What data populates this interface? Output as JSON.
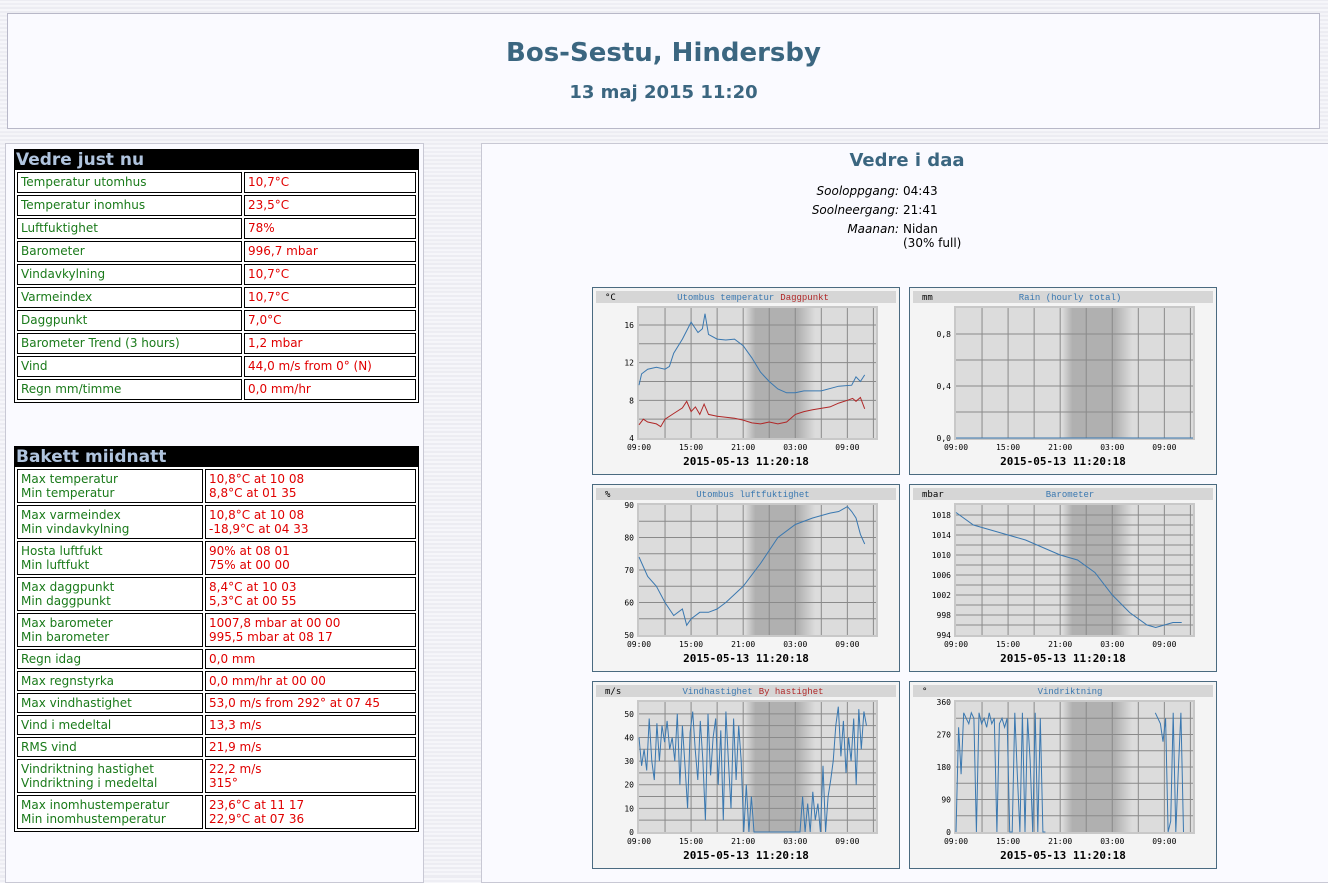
{
  "header": {
    "title": "Bos-Sestu, Hindersby",
    "datetime": "13 maj 2015 11:20"
  },
  "current": {
    "title": "Vedre just nu",
    "rows": [
      {
        "label": "Temperatur utomhus",
        "value": "10,7°C"
      },
      {
        "label": "Temperatur inomhus",
        "value": "23,5°C"
      },
      {
        "label": "Luftfuktighet",
        "value": "78%"
      },
      {
        "label": "Barometer",
        "value": "996,7 mbar"
      },
      {
        "label": "Vindavkylning",
        "value": "10,7°C"
      },
      {
        "label": "Varmeindex",
        "value": "10,7°C"
      },
      {
        "label": "Daggpunkt",
        "value": "7,0°C"
      },
      {
        "label": "Barometer Trend (3 hours)",
        "value": "1,2 mbar"
      },
      {
        "label": "Vind",
        "value": "44,0 m/s from 0° (N)"
      },
      {
        "label": "Regn mm/timme",
        "value": "0,0 mm/hr"
      }
    ]
  },
  "since_midnight": {
    "title": "Bakett miidnatt",
    "rows": [
      {
        "label": "Max temperatur",
        "label2": "Min temperatur",
        "value": "10,8°C at 10 08",
        "value2": "8,8°C at 01 35"
      },
      {
        "label": "Max varmeindex",
        "label2": "Min vindavkylning",
        "value": "10,8°C at 10 08",
        "value2": "-18,9°C at 04 33"
      },
      {
        "label": "Hosta luftfukt",
        "label2": "Min luftfukt",
        "value": "90% at 08 01",
        "value2": "75% at 00 00"
      },
      {
        "label": "Max daggpunkt",
        "label2": "Min daggpunkt",
        "value": "8,4°C at 10 03",
        "value2": "5,3°C at 00 55"
      },
      {
        "label": "Max barometer",
        "label2": "Min barometer",
        "value": "1007,8 mbar at 00 00",
        "value2": "995,5 mbar at 08 17"
      },
      {
        "label": "Regn idag",
        "value": "0,0 mm"
      },
      {
        "label": "Max regnstyrka",
        "value": "0,0 mm/hr at 00 00"
      },
      {
        "label": "Max vindhastighet",
        "value": "53,0 m/s from 292° at 07 45"
      },
      {
        "label": "Vind i medeltal",
        "value": "13,3 m/s"
      },
      {
        "label": "RMS vind",
        "value": "21,9 m/s"
      },
      {
        "label": "Vindriktning hastighet",
        "label2": "Vindriktning i medeltal",
        "value": "22,2 m/s",
        "value2": "315°"
      },
      {
        "label": "Max inomhustemperatur",
        "label2": "Min inomhustemperatur",
        "value": "23,6°C at 11 17",
        "value2": "22,9°C at 07 36"
      }
    ]
  },
  "today": {
    "title": "Vedre i daa",
    "sunrise_label": "Sooloppgang:",
    "sunrise": "04:43",
    "sunset_label": "Soolneergang:",
    "sunset": "21:41",
    "moon_label": "Maanan:",
    "moon": "Nidan",
    "moon_full": "(30% full)"
  },
  "chart_data": [
    {
      "type": "line",
      "unit": "°C",
      "title": [
        "Utombus temperatur",
        "Daggpunkt"
      ],
      "colors": [
        "#3a78b0",
        "#b02828"
      ],
      "ylim": [
        4,
        17.8
      ],
      "yticks": [
        4,
        8,
        12,
        16
      ],
      "ytick_labels": [
        "4",
        "8",
        "12",
        "16"
      ],
      "xtick_labels": [
        "09:00",
        "15:00",
        "21:00",
        "03:00",
        "09:00"
      ],
      "footer": "2015-05-13 11:20:18",
      "series": [
        {
          "name": "Utombus temperatur",
          "x": [
            0,
            0.3,
            1,
            2,
            3,
            3.5,
            4,
            5,
            6,
            6.8,
            7.3,
            7.6,
            8,
            9,
            10,
            11,
            12,
            13,
            14,
            15,
            16,
            17,
            18,
            19,
            21,
            23,
            24.5,
            25,
            25.5,
            26
          ],
          "y": [
            9.6,
            10.8,
            11.3,
            11.5,
            11.3,
            11.6,
            13,
            14.5,
            16.3,
            15.2,
            15.6,
            17.2,
            15,
            14.5,
            14.4,
            14.5,
            13.8,
            12.5,
            11,
            10,
            9.2,
            8.8,
            8.8,
            9,
            9,
            9.5,
            9.6,
            10.5,
            10,
            10.7
          ]
        },
        {
          "name": "Daggpunkt",
          "x": [
            0,
            0.5,
            1,
            2,
            2.5,
            3,
            4,
            5,
            5.5,
            6,
            6.5,
            7,
            7.5,
            8,
            9,
            10,
            11,
            12,
            13,
            14,
            15,
            16,
            17,
            18,
            19,
            20,
            22,
            23,
            24,
            24.6,
            25,
            25.5,
            26
          ],
          "y": [
            5.4,
            6,
            5.7,
            5.5,
            5.2,
            6,
            6.6,
            7.2,
            7.9,
            6.8,
            7.3,
            6.5,
            7.6,
            6.5,
            6.3,
            6.2,
            6.1,
            5.9,
            5.6,
            5.5,
            5.7,
            5.5,
            5.7,
            6.5,
            6.8,
            7,
            7.3,
            7.7,
            8,
            8.2,
            7.9,
            8.3,
            7.1
          ]
        }
      ]
    },
    {
      "type": "line",
      "unit": "mm",
      "title": [
        "Rain (hourly total)"
      ],
      "colors": [
        "#3a78b0"
      ],
      "ylim": [
        0,
        1
      ],
      "yticks": [
        0,
        0.4,
        0.8
      ],
      "ytick_labels": [
        "0,0",
        "0,4",
        "0,8"
      ],
      "xtick_labels": [
        "09:00",
        "15:00",
        "21:00",
        "03:00",
        "09:00"
      ],
      "footer": "2015-05-13 11:20:18",
      "series": [
        {
          "name": "Rain (hourly total)",
          "x": [
            0,
            27.3
          ],
          "y": [
            0,
            0
          ]
        }
      ]
    },
    {
      "type": "line",
      "unit": "%",
      "title": [
        "Utombus luftfuktighet"
      ],
      "colors": [
        "#3a78b0"
      ],
      "ylim": [
        50,
        90
      ],
      "yticks": [
        50,
        60,
        70,
        80,
        90
      ],
      "ytick_labels": [
        "50",
        "60",
        "70",
        "80",
        "90"
      ],
      "xtick_labels": [
        "09:00",
        "15:00",
        "21:00",
        "03:00",
        "09:00"
      ],
      "footer": "2015-05-13 11:20:18",
      "series": [
        {
          "name": "Utombus luftfuktighet",
          "x": [
            0,
            1,
            2,
            3,
            4,
            5,
            5.5,
            6,
            7,
            8,
            9,
            10,
            12,
            14,
            16,
            18,
            20,
            22,
            23,
            24,
            24.5,
            25,
            25.5,
            26
          ],
          "y": [
            74,
            68,
            65,
            60,
            56,
            58,
            53,
            55,
            57,
            57,
            58,
            60,
            65,
            72,
            80,
            84,
            86,
            87.5,
            88,
            89.5,
            88,
            86,
            81,
            78
          ]
        }
      ]
    },
    {
      "type": "line",
      "unit": "mbar",
      "title": [
        "Barometer"
      ],
      "colors": [
        "#3a78b0"
      ],
      "ylim": [
        994,
        1020
      ],
      "yticks": [
        994,
        998,
        1002,
        1006,
        1010,
        1014,
        1018
      ],
      "ytick_labels": [
        "994",
        "998",
        "1002",
        "1006",
        "1010",
        "1014",
        "1018"
      ],
      "xtick_labels": [
        "09:00",
        "15:00",
        "21:00",
        "03:00",
        "09:00"
      ],
      "footer": "2015-05-13 11:20:18",
      "series": [
        {
          "name": "Barometer",
          "x": [
            0,
            2,
            4,
            6,
            8,
            10,
            12,
            14,
            16,
            18,
            20,
            22,
            23,
            24,
            25,
            26
          ],
          "y": [
            1018.5,
            1016,
            1015,
            1014,
            1013,
            1011.5,
            1010,
            1009,
            1006.5,
            1002,
            998.5,
            996,
            995.5,
            996,
            996.5,
            996.5
          ]
        }
      ]
    },
    {
      "type": "line",
      "unit": "m/s",
      "title": [
        "Vindhastighet",
        "By hastighet"
      ],
      "colors": [
        "#3a78b0",
        "#b02828"
      ],
      "ylim": [
        0,
        55
      ],
      "yticks": [
        0,
        10,
        20,
        30,
        40,
        50
      ],
      "ytick_labels": [
        "0",
        "10",
        "20",
        "30",
        "40",
        "50"
      ],
      "xtick_labels": [
        "09:00",
        "15:00",
        "21:00",
        "03:00",
        "09:00"
      ],
      "footer": "2015-05-13 11:20:18",
      "x_range": [
        0,
        26.2
      ],
      "series": [
        {
          "name": "Vindhastighet",
          "y": [
            40,
            28,
            35,
            26,
            48,
            30,
            22,
            46,
            30,
            45,
            38,
            47,
            35,
            40,
            30,
            50,
            20,
            45,
            28,
            10,
            42,
            51,
            35,
            22,
            47,
            30,
            5,
            50,
            24,
            40,
            48,
            20,
            43,
            5,
            51,
            30,
            10,
            48,
            22,
            45,
            30,
            0,
            20,
            0,
            15,
            0,
            0,
            0,
            0,
            0,
            0,
            0,
            0,
            0,
            0,
            0,
            0,
            0,
            0,
            0,
            0,
            0,
            0,
            0,
            15,
            0,
            12,
            0,
            17,
            5,
            12,
            0,
            28,
            0,
            15,
            22,
            30,
            45,
            53,
            32,
            47,
            25,
            40,
            30,
            48,
            20,
            52,
            35,
            51,
            45
          ]
        }
      ]
    },
    {
      "type": "line",
      "unit": "°",
      "title": [
        "Vindriktning"
      ],
      "colors": [
        "#3a78b0"
      ],
      "ylim": [
        0,
        360
      ],
      "yticks": [
        0,
        90,
        180,
        270,
        360
      ],
      "ytick_labels": [
        "0",
        "90",
        "180",
        "270",
        "360"
      ],
      "xtick_labels": [
        "09:00",
        "15:00",
        "21:00",
        "03:00",
        "09:00"
      ],
      "footer": "2015-05-13 11:20:18",
      "x_range": [
        0,
        26.2
      ],
      "series": [
        {
          "name": "Vindriktning",
          "y": [
            0,
            290,
            160,
            330,
            315,
            300,
            330,
            315,
            0,
            330,
            300,
            315,
            290,
            330,
            300,
            315,
            0,
            300,
            315,
            290,
            315,
            0,
            0,
            330,
            160,
            0,
            330,
            0,
            315,
            200,
            0,
            330,
            0,
            315,
            0,
            0,
            null,
            null,
            null,
            null,
            null,
            null,
            null,
            null,
            null,
            null,
            null,
            null,
            null,
            null,
            null,
            null,
            null,
            null,
            null,
            null,
            null,
            null,
            null,
            null,
            null,
            null,
            null,
            null,
            null,
            null,
            null,
            null,
            null,
            null,
            null,
            null,
            null,
            null,
            null,
            null,
            null,
            null,
            330,
            315,
            300,
            250,
            315,
            0,
            30,
            330,
            0,
            170,
            330,
            0
          ]
        }
      ]
    }
  ]
}
